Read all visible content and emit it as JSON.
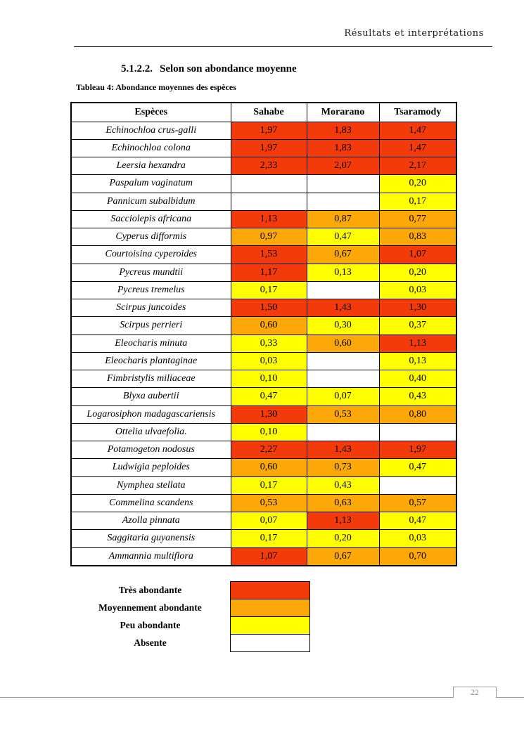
{
  "page": {
    "header_right": "Résultats et interprétations",
    "section_number": "5.1.2.2.",
    "section_title": "Selon son abondance moyenne",
    "table_caption": "Tableau 4: Abondance moyennes des espèces",
    "page_number": "22"
  },
  "colors": {
    "tres_abondante": "#F23A0A",
    "moyennement_abondante": "#FCA808",
    "peu_abondante": "#FFFF00",
    "absente": "#FFFFFF"
  },
  "table": {
    "headers": [
      "Espèces",
      "Sahabe",
      "Morarano",
      "Tsaramody"
    ],
    "rows": [
      {
        "species": "Echinochloa crus-galli",
        "values": [
          "1,97",
          "1,83",
          "1,47"
        ],
        "colors": [
          "red",
          "red",
          "red"
        ]
      },
      {
        "species": "Echinochloa colona",
        "values": [
          "1,97",
          "1,83",
          "1,47"
        ],
        "colors": [
          "red",
          "red",
          "red"
        ]
      },
      {
        "species": "Leersia hexandra",
        "values": [
          "2,33",
          "2,07",
          "2,17"
        ],
        "colors": [
          "red",
          "red",
          "red"
        ]
      },
      {
        "species": "Paspalum vaginatum",
        "values": [
          "",
          "",
          "0,20"
        ],
        "colors": [
          "white",
          "white",
          "yellow"
        ]
      },
      {
        "species": "Pannicum subalbidum",
        "values": [
          "",
          "",
          "0,17"
        ],
        "colors": [
          "white",
          "white",
          "yellow"
        ]
      },
      {
        "species": "Sacciolepis africana",
        "values": [
          "1,13",
          "0,87",
          "0,77"
        ],
        "colors": [
          "red",
          "orange",
          "orange"
        ]
      },
      {
        "species": "Cyperus difformis",
        "values": [
          "0,97",
          "0,47",
          "0,83"
        ],
        "colors": [
          "orange",
          "yellow",
          "orange"
        ]
      },
      {
        "species": "Courtoisina cyperoides",
        "values": [
          "1,53",
          "0,67",
          "1,07"
        ],
        "colors": [
          "red",
          "orange",
          "red"
        ]
      },
      {
        "species": "Pycreus mundtii",
        "values": [
          "1,17",
          "0,13",
          "0,20"
        ],
        "colors": [
          "red",
          "yellow",
          "yellow"
        ]
      },
      {
        "species": "Pycreus tremelus",
        "values": [
          "0,17",
          "",
          "0,03"
        ],
        "colors": [
          "yellow",
          "white",
          "yellow"
        ]
      },
      {
        "species": "Scirpus juncoides",
        "values": [
          "1,50",
          "1,43",
          "1,30"
        ],
        "colors": [
          "red",
          "red",
          "red"
        ]
      },
      {
        "species": "Scirpus perrieri",
        "values": [
          "0,60",
          "0,30",
          "0,37"
        ],
        "colors": [
          "orange",
          "yellow",
          "yellow"
        ]
      },
      {
        "species": "Eleocharis minuta",
        "values": [
          "0,33",
          "0,60",
          "1,13"
        ],
        "colors": [
          "yellow",
          "orange",
          "red"
        ]
      },
      {
        "species": "Eleocharis plantaginae",
        "values": [
          "0,03",
          "",
          "0,13"
        ],
        "colors": [
          "yellow",
          "white",
          "yellow"
        ]
      },
      {
        "species": "Fimbristylis miliaceae",
        "values": [
          "0,10",
          "",
          "0,40"
        ],
        "colors": [
          "yellow",
          "white",
          "yellow"
        ]
      },
      {
        "species": "Blyxa aubertii",
        "values": [
          "0,47",
          "0,07",
          "0,43"
        ],
        "colors": [
          "yellow",
          "yellow",
          "yellow"
        ]
      },
      {
        "species": "Logarosiphon madagascariensis",
        "values": [
          "1,30",
          "0,53",
          "0,80"
        ],
        "colors": [
          "red",
          "orange",
          "orange"
        ]
      },
      {
        "species": "Ottelia ulvaefolia.",
        "values": [
          "0,10",
          "",
          ""
        ],
        "colors": [
          "yellow",
          "white",
          "white"
        ]
      },
      {
        "species": "Potamogeton nodosus",
        "values": [
          "2,27",
          "1,43",
          "1,97"
        ],
        "colors": [
          "red",
          "red",
          "red"
        ]
      },
      {
        "species": "Ludwigia peploides",
        "values": [
          "0,60",
          "0,73",
          "0,47"
        ],
        "colors": [
          "orange",
          "orange",
          "yellow"
        ]
      },
      {
        "species": "Nymphea stellata",
        "values": [
          "0,17",
          "0,43",
          ""
        ],
        "colors": [
          "yellow",
          "yellow",
          "white"
        ]
      },
      {
        "species": "Commelina scandens",
        "values": [
          "0,53",
          "0,63",
          "0,57"
        ],
        "colors": [
          "orange",
          "orange",
          "orange"
        ]
      },
      {
        "species": "Azolla pinnata",
        "values": [
          "0,07",
          "1,13",
          "0,47"
        ],
        "colors": [
          "yellow",
          "red",
          "yellow"
        ]
      },
      {
        "species": "Saggitaria guyanensis",
        "values": [
          "0,17",
          "0,20",
          "0,03"
        ],
        "colors": [
          "yellow",
          "yellow",
          "yellow"
        ]
      },
      {
        "species": "Ammannia multiflora",
        "values": [
          "1,07",
          "0,67",
          "0,70"
        ],
        "colors": [
          "red",
          "orange",
          "orange"
        ]
      }
    ]
  },
  "legend": [
    {
      "label": "Très abondante",
      "color": "red"
    },
    {
      "label": "Moyennement abondante",
      "color": "orange"
    },
    {
      "label": "Peu abondante",
      "color": "yellow"
    },
    {
      "label": "Absente",
      "color": "white"
    }
  ]
}
